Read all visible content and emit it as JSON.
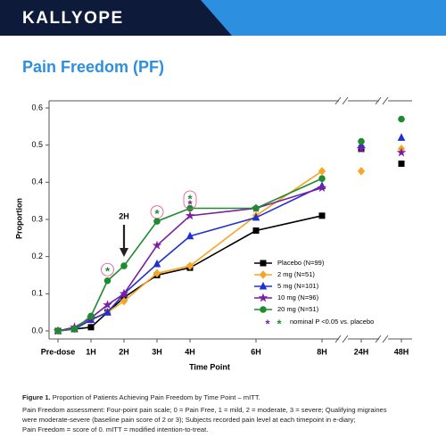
{
  "header": {
    "brand": "KALLYOPE"
  },
  "chart_data": {
    "type": "line",
    "title": "Pain Freedom (PF)",
    "xlabel": "Time Point",
    "ylabel": "Proportion",
    "x": [
      0,
      0.5,
      1,
      1.5,
      2,
      3,
      4,
      6,
      8,
      24,
      48
    ],
    "xlim": [
      0,
      48
    ],
    "axis_break": 8,
    "xticks": [
      {
        "value": 0,
        "label": "Pre-dose"
      },
      {
        "value": 1,
        "label": "1H"
      },
      {
        "value": 2,
        "label": "2H"
      },
      {
        "value": 3,
        "label": "3H"
      },
      {
        "value": 4,
        "label": "4H"
      },
      {
        "value": 6,
        "label": "6H"
      },
      {
        "value": 8,
        "label": "8H"
      },
      {
        "value": 24,
        "label": "24H"
      },
      {
        "value": 48,
        "label": "48H"
      }
    ],
    "ylim": [
      0,
      0.6
    ],
    "yticks": [
      {
        "value": 0,
        "label": "0.0"
      },
      0.1,
      0.2,
      0.3,
      0.4,
      0.5,
      0.6
    ],
    "series": [
      {
        "name": "Placebo (N=99)",
        "color": "#000000",
        "marker": "square",
        "values": [
          0,
          0.005,
          0.01,
          0.05,
          0.09,
          0.15,
          0.17,
          0.27,
          0.31,
          0.49,
          0.45
        ]
      },
      {
        "name": "2 mg (N=51)",
        "color": "#f5a623",
        "marker": "diamond",
        "values": [
          0,
          0.005,
          0.03,
          0.05,
          0.08,
          0.155,
          0.175,
          0.31,
          0.43,
          0.43,
          0.49
        ]
      },
      {
        "name": "5 mg (N=101)",
        "color": "#2230d0",
        "marker": "triangle",
        "values": [
          0,
          0.005,
          0.03,
          0.05,
          0.1,
          0.18,
          0.255,
          0.305,
          0.39,
          0.5,
          0.52
        ]
      },
      {
        "name": "10 mg (N=96)",
        "color": "#7b1fa2",
        "marker": "star",
        "values": [
          0,
          0.01,
          0.035,
          0.07,
          0.1,
          0.23,
          0.31,
          0.33,
          0.385,
          0.49,
          0.48
        ]
      },
      {
        "name": "20 mg (N=51)",
        "color": "#1e8c2e",
        "marker": "circle",
        "values": [
          0,
          0.005,
          0.04,
          0.135,
          0.175,
          0.295,
          0.33,
          0.33,
          0.41,
          0.51,
          0.57
        ]
      }
    ],
    "significance": {
      "text": "*",
      "label": "nominal P <0.05 vs. placebo",
      "colors": [
        "#7b1fa2",
        "#1e8c2e"
      ],
      "points": [
        {
          "x": 1.5,
          "y": 0.165,
          "color": "#1e8c2e"
        },
        {
          "x": 3,
          "y": 0.32,
          "color": "#1e8c2e"
        },
        {
          "x": 4,
          "y": 0.36,
          "color": "#1e8c2e"
        },
        {
          "x": 4,
          "y": 0.345,
          "color": "#7b1fa2"
        }
      ]
    },
    "arrow": {
      "text": "2H",
      "x": 2
    }
  },
  "caption": {
    "label": "Figure 1.",
    "title": "Proportion of Patients Achieving Pain Freedom by Time Point – mITT.",
    "lines": [
      "Pain Freedom assessment: Four-point pain scale; 0 = Pain Free, 1 = mild, 2 = moderate, 3 = severe; Qualifying migraines",
      "were moderate-severe (baseline pain score of 2 or 3); Subjects recorded pain level at each timepoint in e-diary;",
      "Pain Freedom = score of 0. mITT = modified intention-to-treat."
    ]
  }
}
